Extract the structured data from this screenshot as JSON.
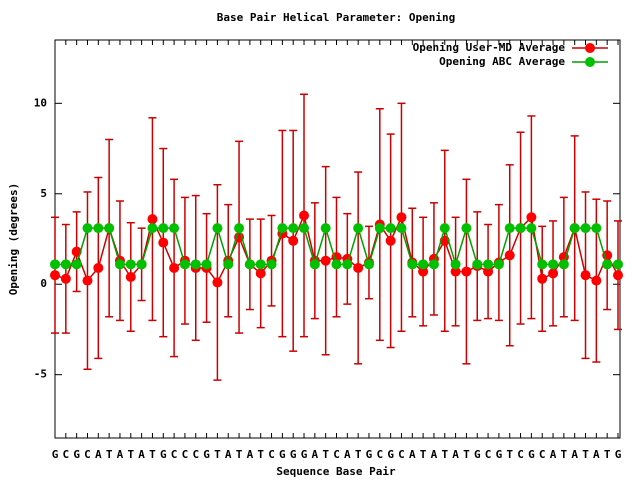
{
  "chart_data": {
    "type": "line",
    "title": "Base Pair Helical Parameter: Opening",
    "xlabel": "Sequence Base Pair",
    "ylabel": "Opening (degrees)",
    "categories": [
      "G",
      "C",
      "G",
      "C",
      "A",
      "T",
      "A",
      "T",
      "A",
      "T",
      "G",
      "C",
      "C",
      "C",
      "G",
      "T",
      "A",
      "T",
      "A",
      "T",
      "C",
      "G",
      "G",
      "G",
      "A",
      "T",
      "C",
      "A",
      "T",
      "G",
      "C",
      "G",
      "C",
      "A",
      "T",
      "A",
      "T",
      "A",
      "T",
      "G",
      "C",
      "G",
      "T",
      "C",
      "G",
      "C",
      "A",
      "T",
      "A",
      "T",
      "A",
      "T",
      "G"
    ],
    "ylim": [
      -8.5,
      13.5
    ],
    "yticks": [
      -5,
      0,
      5,
      10
    ],
    "legend": "top-right",
    "series": [
      {
        "name": "Opening User-MD Average",
        "color": "#ff0000",
        "line_color": "#cc0000",
        "values": [
          0.5,
          0.3,
          1.8,
          0.2,
          0.9,
          3.1,
          1.3,
          0.4,
          1.1,
          3.6,
          2.3,
          0.9,
          1.3,
          0.9,
          0.9,
          0.1,
          1.3,
          2.6,
          1.1,
          0.6,
          1.3,
          2.8,
          2.4,
          3.8,
          1.3,
          1.3,
          1.5,
          1.4,
          0.9,
          1.2,
          3.3,
          2.4,
          3.7,
          1.2,
          0.7,
          1.4,
          2.4,
          0.7,
          0.7,
          1.0,
          0.7,
          1.2,
          1.6,
          3.1,
          3.7,
          0.3,
          0.6,
          1.5,
          3.1,
          0.5,
          0.2,
          1.6,
          0.5
        ],
        "errors": [
          3.2,
          3.0,
          2.2,
          4.9,
          5.0,
          4.9,
          3.3,
          3.0,
          2.0,
          5.6,
          5.2,
          4.9,
          3.5,
          4.0,
          3.0,
          5.4,
          3.1,
          5.3,
          2.5,
          3.0,
          2.5,
          5.7,
          6.1,
          6.7,
          3.2,
          5.2,
          3.3,
          2.5,
          5.3,
          2.0,
          6.4,
          5.9,
          6.3,
          3.0,
          3.0,
          3.1,
          5.0,
          3.0,
          5.1,
          3.0,
          2.6,
          3.2,
          5.0,
          5.3,
          5.6,
          2.9,
          2.9,
          3.3,
          5.1,
          4.6,
          4.5,
          3.0,
          3.0
        ]
      },
      {
        "name": "Opening ABC Average",
        "color": "#00c000",
        "line_color": "#00a000",
        "values": [
          1.1,
          1.1,
          1.1,
          3.1,
          3.1,
          3.1,
          1.1,
          1.1,
          1.1,
          3.1,
          3.1,
          3.1,
          1.1,
          1.1,
          1.1,
          3.1,
          1.1,
          3.1,
          1.1,
          1.1,
          1.1,
          3.1,
          3.1,
          3.1,
          1.1,
          3.1,
          1.1,
          1.1,
          3.1,
          1.1,
          3.1,
          3.1,
          3.1,
          1.1,
          1.1,
          1.1,
          3.1,
          1.1,
          3.1,
          1.1,
          1.1,
          1.1,
          3.1,
          3.1,
          3.1,
          1.1,
          1.1,
          1.1,
          3.1,
          3.1,
          3.1,
          1.1,
          1.1
        ]
      }
    ]
  }
}
